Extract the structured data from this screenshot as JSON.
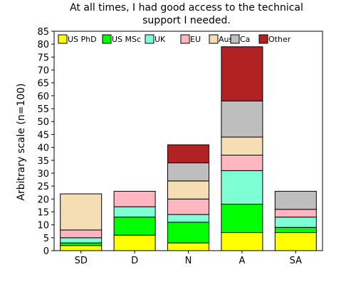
{
  "chart_data": {
    "type": "bar",
    "stacked": true,
    "title": [
      "At all times, I had good access to the technical",
      "support I needed."
    ],
    "xlabel": "",
    "ylabel": "Arbitrary scale (n=100)",
    "ylim": [
      0,
      85
    ],
    "yticks": [
      0,
      5,
      10,
      15,
      20,
      25,
      30,
      35,
      40,
      45,
      50,
      55,
      60,
      65,
      70,
      75,
      80,
      85
    ],
    "grid": false,
    "legend_position": "top-left-inside",
    "categories": [
      "SD",
      "D",
      "N",
      "A",
      "SA"
    ],
    "series": [
      {
        "name": "US PhD",
        "color": "#ffff00",
        "values": [
          2,
          6,
          3,
          7,
          7
        ]
      },
      {
        "name": "US MSc",
        "color": "#00ff00",
        "values": [
          1,
          7,
          8,
          11,
          2
        ]
      },
      {
        "name": "UK",
        "color": "#7fffd4",
        "values": [
          2,
          4,
          3,
          13,
          4
        ]
      },
      {
        "name": "EU",
        "color": "#ffb6c1",
        "values": [
          3,
          6,
          6,
          6,
          3
        ]
      },
      {
        "name": "Aus",
        "color": "#f5deb3",
        "values": [
          14,
          0,
          7,
          7,
          0
        ]
      },
      {
        "name": "Ca",
        "color": "#bebebe",
        "values": [
          0,
          0,
          7,
          14,
          7
        ]
      },
      {
        "name": "Other",
        "color": "#b22222",
        "values": [
          0,
          0,
          7,
          21,
          0
        ]
      }
    ]
  }
}
